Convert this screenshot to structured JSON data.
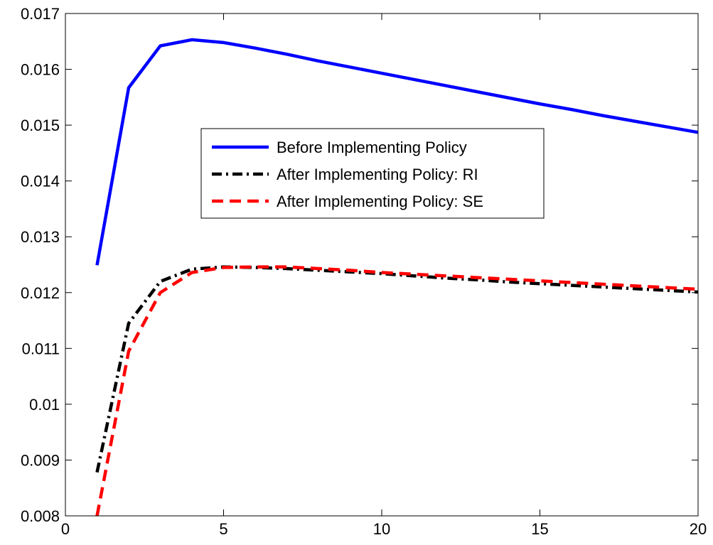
{
  "chart_data": {
    "type": "line",
    "title": "",
    "xlabel": "",
    "ylabel": "",
    "xlim": [
      0,
      20
    ],
    "ylim": [
      0.008,
      0.017
    ],
    "xticks": [
      0,
      5,
      10,
      15,
      20
    ],
    "yticks": [
      0.008,
      0.009,
      0.01,
      0.011,
      0.012,
      0.013,
      0.014,
      0.015,
      0.016,
      0.017
    ],
    "xtick_labels": [
      "0",
      "5",
      "10",
      "15",
      "20"
    ],
    "ytick_labels": [
      "0.008",
      "0.009",
      "0.01",
      "0.011",
      "0.012",
      "0.013",
      "0.014",
      "0.015",
      "0.016",
      "0.017"
    ],
    "grid": false,
    "legend_position": "upper-center",
    "x": [
      1,
      2,
      3,
      4,
      5,
      6,
      7,
      8,
      9,
      10,
      11,
      12,
      13,
      14,
      15,
      16,
      17,
      18,
      19,
      20
    ],
    "series": [
      {
        "name": "Before Implementing Policy",
        "color": "#0000ff",
        "style": "solid",
        "values": [
          0.01249,
          0.01567,
          0.01642,
          0.01653,
          0.01648,
          0.01638,
          0.01627,
          0.01615,
          0.01604,
          0.01593,
          0.01582,
          0.01571,
          0.0156,
          0.01549,
          0.01538,
          0.01528,
          0.01517,
          0.01507,
          0.01497,
          0.01487
        ]
      },
      {
        "name": "After Implementing Policy: RI",
        "color": "#000000",
        "style": "dashdot",
        "values": [
          0.00878,
          0.01145,
          0.0122,
          0.01242,
          0.01246,
          0.01245,
          0.01243,
          0.0124,
          0.01237,
          0.01234,
          0.0123,
          0.01226,
          0.01223,
          0.01219,
          0.01216,
          0.01213,
          0.0121,
          0.01207,
          0.01204,
          0.01201
        ]
      },
      {
        "name": "After Implementing Policy: SE",
        "color": "#ff0000",
        "style": "dashed",
        "values": [
          0.008,
          0.01095,
          0.012,
          0.01236,
          0.01245,
          0.01246,
          0.01246,
          0.01243,
          0.0124,
          0.01236,
          0.01233,
          0.0123,
          0.01227,
          0.01224,
          0.01221,
          0.01218,
          0.01215,
          0.01212,
          0.01209,
          0.01206
        ]
      }
    ]
  }
}
